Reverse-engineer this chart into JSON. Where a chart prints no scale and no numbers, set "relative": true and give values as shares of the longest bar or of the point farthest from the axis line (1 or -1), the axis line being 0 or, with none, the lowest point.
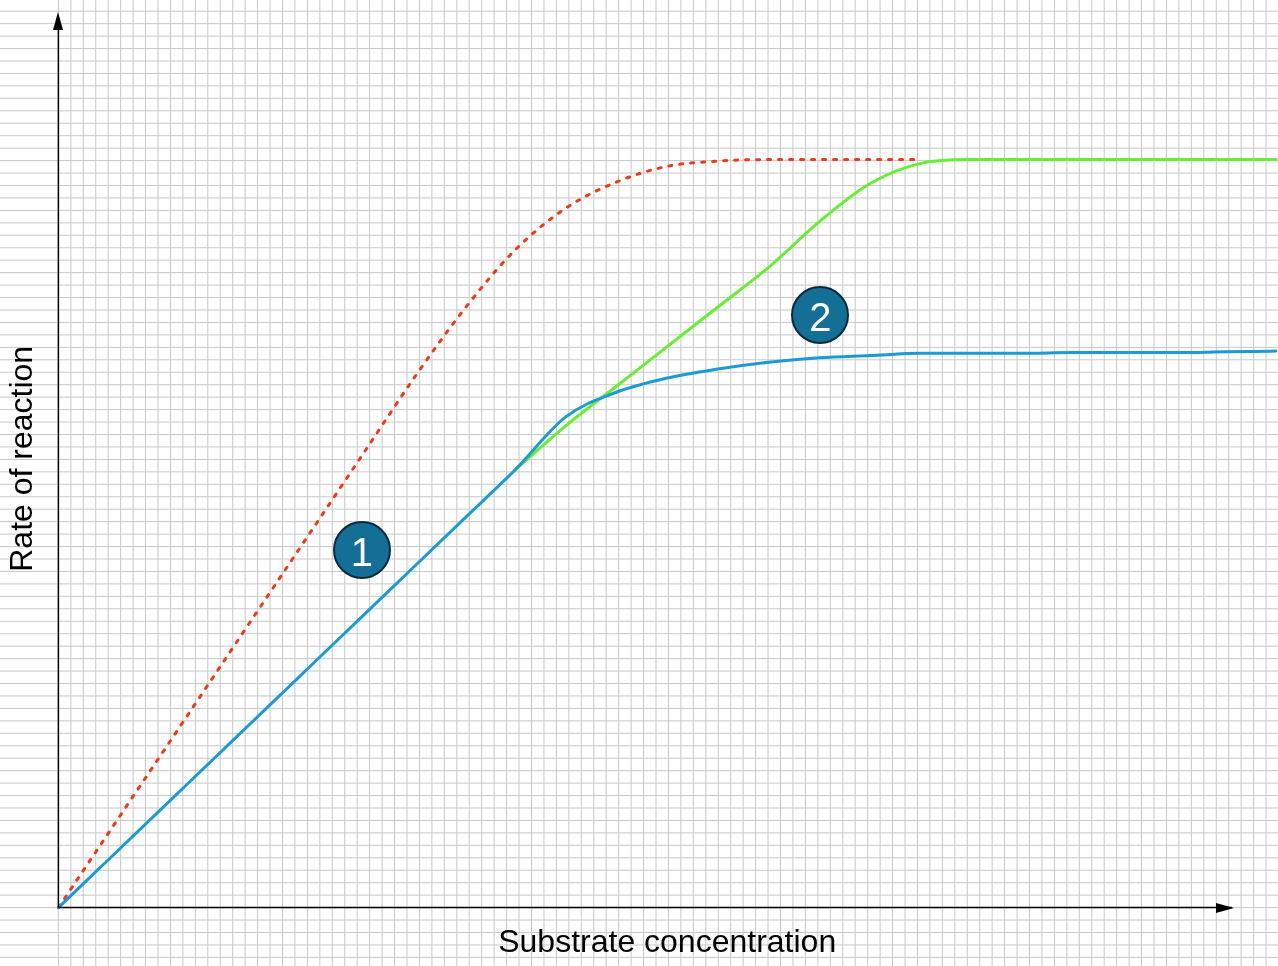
{
  "chart_data": {
    "type": "line",
    "relative": true,
    "xlabel": "Substrate concentration",
    "ylabel": "Rate of reaction",
    "grid": true,
    "legend": false,
    "marker": "none",
    "categories": [
      null,
      null,
      null,
      null,
      null,
      null,
      null,
      null,
      null,
      null,
      null,
      null,
      null,
      null,
      null,
      null,
      null,
      null,
      null,
      null,
      null,
      null,
      null,
      null,
      null
    ],
    "series": [
      {
        "color": "#f03a17",
        "line_style": "dotted",
        "values": [
          0,
          0.101,
          0.202,
          0.303,
          0.404,
          0.505,
          0.606,
          0.707,
          0.8,
          0.879,
          0.935,
          0.97,
          0.991,
          0.998,
          1,
          1,
          1,
          1,
          null,
          null,
          null,
          null,
          null,
          null,
          null
        ]
      },
      {
        "color": "#66ee33",
        "line_style": "solid",
        "values": [
          null,
          null,
          null,
          null,
          null,
          null,
          null,
          null,
          null,
          0.585,
          0.644,
          0.697,
          0.75,
          0.803,
          0.856,
          0.917,
          0.968,
          0.995,
          1,
          1,
          1,
          1,
          1,
          1,
          1
        ]
      },
      {
        "color": "#1a9ad6",
        "line_style": "solid",
        "values": [
          0,
          0.065,
          0.13,
          0.195,
          0.26,
          0.325,
          0.39,
          0.455,
          0.52,
          0.585,
          0.656,
          0.689,
          0.708,
          0.72,
          0.729,
          0.735,
          0.738,
          0.741,
          0.741,
          0.741,
          0.742,
          0.742,
          0.742,
          0.743,
          0.744
        ]
      }
    ],
    "annotations": [
      "1",
      "2"
    ]
  }
}
